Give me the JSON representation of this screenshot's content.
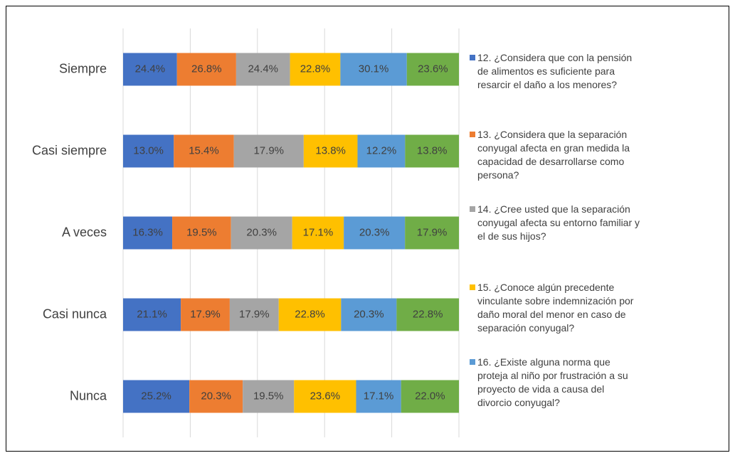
{
  "chart_data": {
    "type": "bar",
    "orientation": "horizontal",
    "stacked": "percent",
    "categories": [
      "Siempre",
      "Casi siempre",
      "A veces",
      "Casi nunca",
      "Nunca"
    ],
    "xlim": [
      0,
      100
    ],
    "xticks": [
      0,
      20,
      40,
      60,
      80,
      100
    ],
    "tick_labels": false,
    "grid": true,
    "legend": "right",
    "series": [
      {
        "name": "12. ¿Considera que con la pensión de alimentos es suficiente para resarcir el daño a los menores?",
        "color": "#4472c4",
        "values": [
          24.4,
          13.0,
          16.3,
          21.1,
          25.2
        ],
        "value_labels": [
          "24.4%",
          "13.0%",
          "16.3%",
          "21.1%",
          "25.2%"
        ]
      },
      {
        "name": "13. ¿Considera que la separación conyugal afecta en gran medida la capacidad de desarrollarse como persona?",
        "color": "#ed7d31",
        "values": [
          26.8,
          15.4,
          19.5,
          17.9,
          20.3
        ],
        "value_labels": [
          "26.8%",
          "15.4%",
          "19.5%",
          "17.9%",
          "20.3%"
        ]
      },
      {
        "name": "14. ¿Cree usted que la separación conyugal afecta su entorno familiar y el de sus hijos?",
        "color": "#a5a5a5",
        "values": [
          24.4,
          17.9,
          20.3,
          17.9,
          19.5
        ],
        "value_labels": [
          "24.4%",
          "17.9%",
          "20.3%",
          "17.9%",
          "19.5%"
        ]
      },
      {
        "name": "15. ¿Conoce algún precedente vinculante sobre indemnización por daño moral del menor en caso de separación conyugal?",
        "color": "#ffc000",
        "values": [
          22.8,
          13.8,
          17.1,
          22.8,
          23.6
        ],
        "value_labels": [
          "22.8%",
          "13.8%",
          "17.1%",
          "22.8%",
          "23.6%"
        ]
      },
      {
        "name": "16. ¿Existe alguna norma que proteja al niño por frustración a su proyecto de vida a causa del divorcio conyugal?",
        "color": "#5b9bd5",
        "values": [
          30.1,
          12.2,
          20.3,
          20.3,
          17.1
        ],
        "value_labels": [
          "30.1%",
          "12.2%",
          "20.3%",
          "20.3%",
          "17.1%"
        ]
      },
      {
        "name": null,
        "color": "#70ad47",
        "values": [
          23.6,
          13.8,
          17.9,
          22.8,
          22.0
        ],
        "value_labels": [
          "23.6%",
          "13.8%",
          "17.9%",
          "22.8%",
          "22.0%"
        ]
      }
    ]
  }
}
